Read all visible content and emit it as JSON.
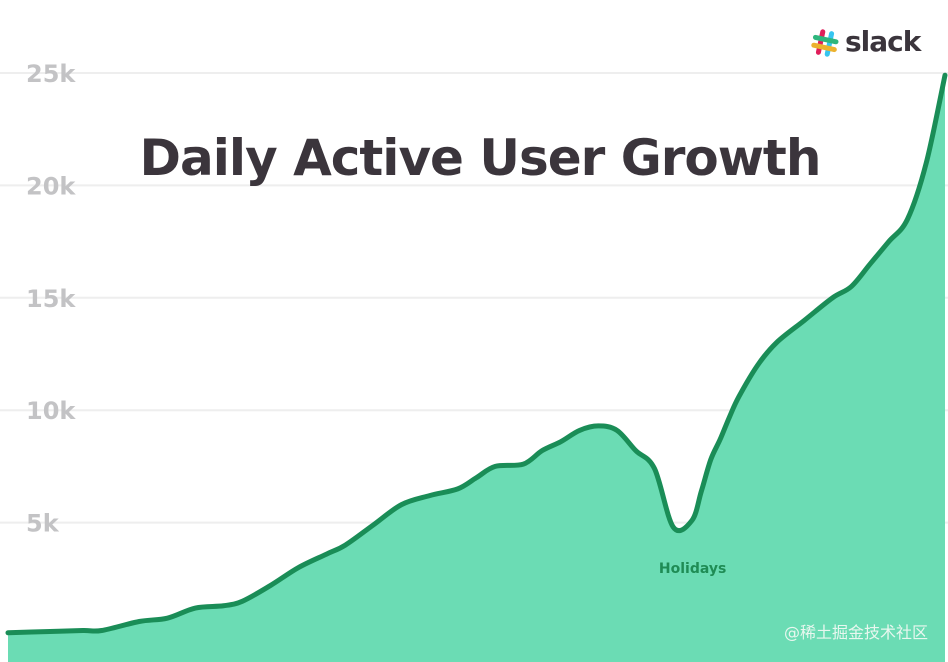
{
  "brand": {
    "name": "slack",
    "colors": [
      "#e01e5a",
      "#36c5f0",
      "#2eb67d",
      "#ecb22e"
    ]
  },
  "watermark": "@稀土掘金技术社区",
  "colors": {
    "area_fill": "#6bdcb4",
    "line": "#1a8d57",
    "grid": "#eeeeee",
    "tick": "#c3c3c5",
    "title": "#3b353c",
    "annotation": "#1f8c55"
  },
  "chart_data": {
    "type": "area",
    "title": "Daily Active User Growth",
    "xlabel": "",
    "ylabel": "",
    "xlim": [
      0,
      100
    ],
    "ylim": [
      0,
      25000
    ],
    "yticks": [
      5000,
      10000,
      15000,
      20000,
      25000
    ],
    "ytick_labels": [
      "5k",
      "10k",
      "15k",
      "20k",
      "25k"
    ],
    "grid": true,
    "legend": "none",
    "x": [
      0,
      4,
      8,
      10,
      14,
      17,
      20,
      23,
      25,
      28,
      31,
      34,
      36,
      39,
      42,
      45,
      48,
      50,
      52,
      55,
      57,
      59,
      61,
      63,
      65,
      67,
      69,
      71,
      73,
      74,
      75,
      76,
      77,
      78,
      80,
      82,
      85,
      88,
      90,
      92,
      94,
      96,
      98,
      100
    ],
    "values": [
      100,
      150,
      200,
      200,
      600,
      750,
      1200,
      1300,
      1500,
      2200,
      3000,
      3600,
      4000,
      4900,
      5800,
      6200,
      6500,
      7000,
      7500,
      7600,
      8200,
      8600,
      9100,
      9300,
      9100,
      8200,
      7400,
      4800,
      5100,
      6400,
      7800,
      8700,
      9700,
      10600,
      12000,
      13000,
      14000,
      15000,
      15500,
      16500,
      17500,
      18500,
      21000,
      24900
    ],
    "annotations": [
      {
        "text": "Holidays",
        "x": 72,
        "y": 4800
      }
    ]
  }
}
